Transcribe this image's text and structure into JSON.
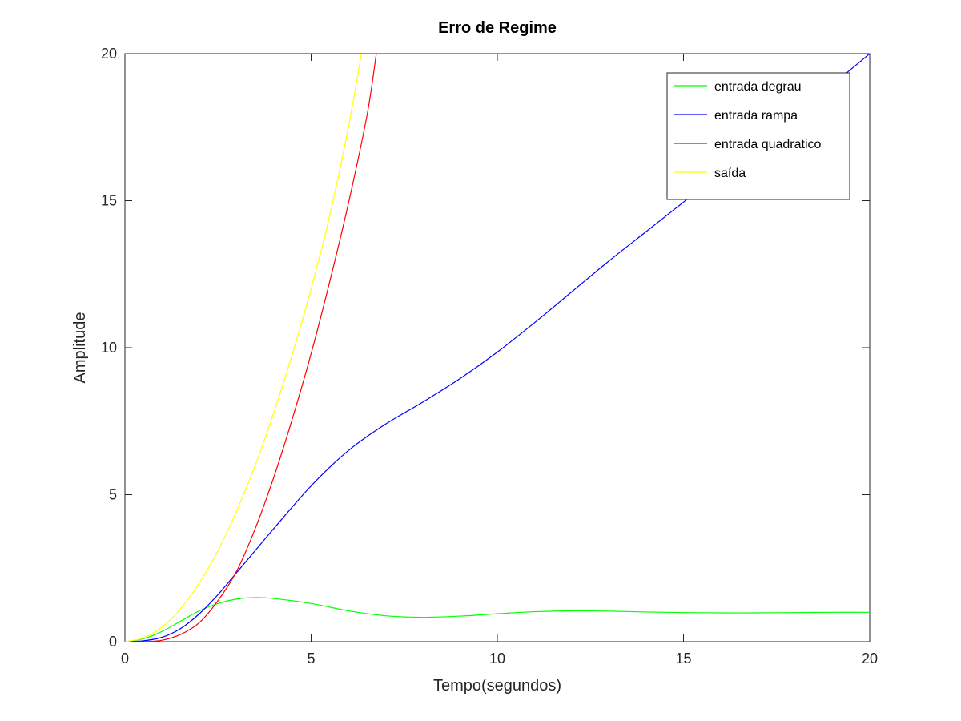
{
  "chart_data": {
    "type": "line",
    "title": "Erro de Regime",
    "xlabel": "Tempo(segundos)",
    "ylabel": "Amplitude",
    "xlim": [
      0,
      20
    ],
    "ylim": [
      0,
      20
    ],
    "xticks": [
      0,
      5,
      10,
      15,
      20
    ],
    "yticks": [
      0,
      5,
      10,
      15,
      20
    ],
    "grid": false,
    "legend_position": "top-right",
    "series": [
      {
        "name": "entrada degrau",
        "color": "#00ff00",
        "x": [
          0,
          0.5,
          1,
          1.5,
          2,
          2.5,
          3,
          3.5,
          4,
          5,
          6,
          7,
          8,
          9,
          10,
          11,
          12,
          13,
          14,
          15,
          16,
          17,
          18,
          19,
          20
        ],
        "y": [
          0,
          0.1,
          0.35,
          0.7,
          1.05,
          1.3,
          1.45,
          1.5,
          1.47,
          1.3,
          1.05,
          0.88,
          0.83,
          0.87,
          0.95,
          1.02,
          1.05,
          1.04,
          1.01,
          0.99,
          0.98,
          0.98,
          0.99,
          1.0,
          1.0
        ]
      },
      {
        "name": "entrada rampa",
        "color": "#0000ff",
        "x": [
          0,
          0.5,
          1,
          1.5,
          2,
          2.5,
          3,
          3.5,
          4,
          5,
          6,
          7,
          8,
          9,
          10,
          11,
          12,
          13,
          14,
          15,
          16,
          17,
          18,
          19,
          20
        ],
        "y": [
          0,
          0.03,
          0.15,
          0.45,
          0.95,
          1.6,
          2.35,
          3.1,
          3.85,
          5.3,
          6.5,
          7.4,
          8.15,
          8.95,
          9.85,
          10.85,
          11.9,
          12.95,
          13.95,
          14.95,
          15.95,
          16.95,
          17.95,
          18.95,
          20.0
        ]
      },
      {
        "name": "entrada quadratico",
        "color": "#ff0000",
        "x": [
          0,
          0.5,
          1,
          1.5,
          2,
          2.5,
          3,
          3.5,
          4,
          4.5,
          5,
          5.5,
          6,
          6.5,
          6.75
        ],
        "y": [
          0,
          0.0,
          0.05,
          0.25,
          0.65,
          1.4,
          2.4,
          3.85,
          5.6,
          7.6,
          9.8,
          12.25,
          14.9,
          17.9,
          20.0
        ]
      },
      {
        "name": "saída",
        "color": "#ffff00",
        "x": [
          0,
          0.5,
          1,
          1.5,
          2,
          2.5,
          3,
          3.5,
          4,
          4.5,
          5,
          5.5,
          6,
          6.35
        ],
        "y": [
          0,
          0.13,
          0.5,
          1.13,
          2.0,
          3.1,
          4.45,
          6.0,
          7.8,
          9.8,
          12.0,
          14.5,
          17.5,
          20.0
        ]
      }
    ]
  }
}
